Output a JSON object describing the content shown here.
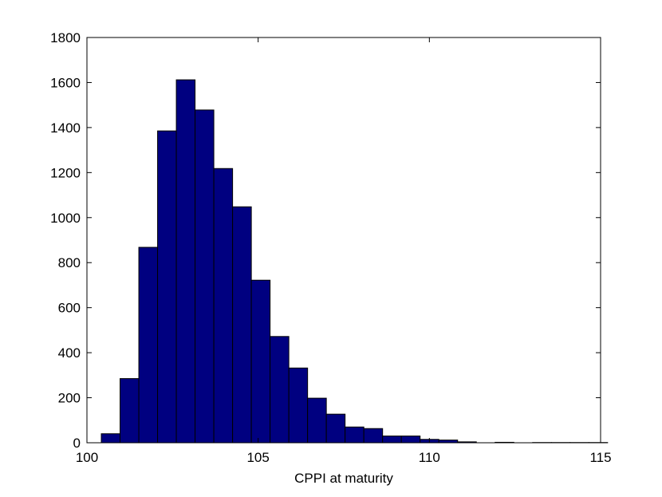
{
  "chart_data": {
    "type": "bar",
    "subtype": "histogram",
    "title": "",
    "xlabel": "CPPI at maturity",
    "ylabel": "",
    "xlim": [
      100,
      115
    ],
    "ylim": [
      0,
      1800
    ],
    "xticks": [
      100,
      105,
      110,
      115
    ],
    "yticks": [
      0,
      200,
      400,
      600,
      800,
      1000,
      1200,
      1400,
      1600,
      1800
    ],
    "grid": false,
    "legend": "none",
    "bar_color": "#000080",
    "bar_edge_color": "#000000",
    "bin_width": 0.5476,
    "bin_edges_start": 100.42,
    "values": [
      40,
      285,
      868,
      1385,
      1612,
      1478,
      1218,
      1048,
      722,
      472,
      332,
      198,
      127,
      70,
      63,
      30,
      30,
      15,
      12,
      4,
      0,
      2,
      0,
      1,
      1,
      1,
      1
    ]
  }
}
